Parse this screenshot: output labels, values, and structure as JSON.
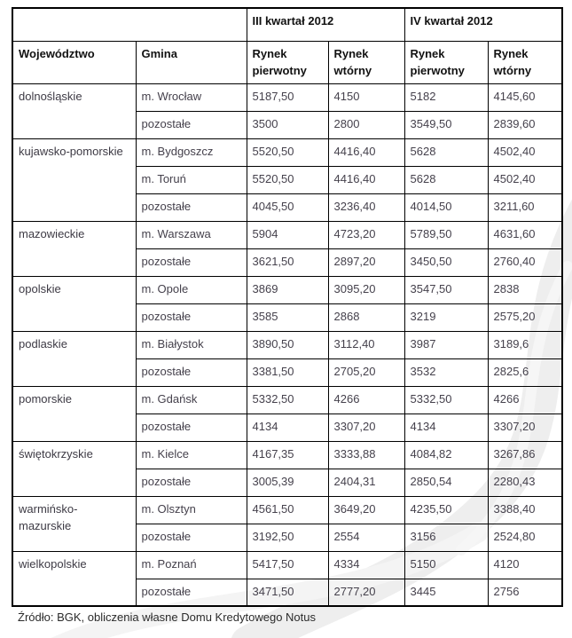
{
  "colors": {
    "border": "#000000",
    "header_text": "#121212",
    "data_text": "#45414c",
    "background": "#ffffff",
    "watermark": "#ededed"
  },
  "table": {
    "quarter_headers": [
      "III kwartał 2012",
      "IV kwartał 2012"
    ],
    "column_headers": [
      "Województwo",
      "Gmina",
      "Rynek pierwotny",
      "Rynek wtórny",
      "Rynek pierwotny",
      "Rynek wtórny"
    ],
    "groups": [
      {
        "wojewodztwo": "dolnośląskie",
        "rows": [
          {
            "gmina": "m. Wrocław",
            "values": [
              "5187,50",
              "4150",
              "5182",
              "4145,60"
            ]
          },
          {
            "gmina": "pozostałe",
            "values": [
              "3500",
              "2800",
              "3549,50",
              "2839,60"
            ]
          }
        ]
      },
      {
        "wojewodztwo": "kujawsko-pomorskie",
        "rows": [
          {
            "gmina": "m. Bydgoszcz",
            "values": [
              "5520,50",
              "4416,40",
              "5628",
              "4502,40"
            ]
          },
          {
            "gmina": "m. Toruń",
            "values": [
              "5520,50",
              "4416,40",
              "5628",
              "4502,40"
            ]
          },
          {
            "gmina": "pozostałe",
            "values": [
              "4045,50",
              "3236,40",
              "4014,50",
              "3211,60"
            ]
          }
        ]
      },
      {
        "wojewodztwo": "mazowieckie",
        "rows": [
          {
            "gmina": "m. Warszawa",
            "values": [
              "5904",
              "4723,20",
              "5789,50",
              "4631,60"
            ]
          },
          {
            "gmina": "pozostałe",
            "values": [
              "3621,50",
              "2897,20",
              "3450,50",
              "2760,40"
            ]
          }
        ]
      },
      {
        "wojewodztwo": "opolskie",
        "rows": [
          {
            "gmina": "m. Opole",
            "values": [
              "3869",
              "3095,20",
              "3547,50",
              "2838"
            ]
          },
          {
            "gmina": "pozostałe",
            "values": [
              "3585",
              "2868",
              "3219",
              "2575,20"
            ]
          }
        ]
      },
      {
        "wojewodztwo": "podlaskie",
        "rows": [
          {
            "gmina": "m. Białystok",
            "values": [
              "3890,50",
              "3112,40",
              "3987",
              "3189,6"
            ]
          },
          {
            "gmina": "pozostałe",
            "values": [
              "3381,50",
              "2705,20",
              "3532",
              "2825,6"
            ]
          }
        ]
      },
      {
        "wojewodztwo": "pomorskie",
        "rows": [
          {
            "gmina": "m. Gdańsk",
            "values": [
              "5332,50",
              "4266",
              "5332,50",
              "4266"
            ]
          },
          {
            "gmina": "pozostałe",
            "values": [
              "4134",
              "3307,20",
              "4134",
              "3307,20"
            ]
          }
        ]
      },
      {
        "wojewodztwo": "świętokrzyskie",
        "rows": [
          {
            "gmina": "m. Kielce",
            "values": [
              "4167,35",
              "3333,88",
              "4084,82",
              "3267,86"
            ]
          },
          {
            "gmina": "pozostałe",
            "values": [
              "3005,39",
              "2404,31",
              "2850,54",
              "2280,43"
            ]
          }
        ]
      },
      {
        "wojewodztwo": "warmińsko-\nmazurskie",
        "rows": [
          {
            "gmina": "m. Olsztyn",
            "values": [
              "4561,50",
              "3649,20",
              "4235,50",
              "3388,40"
            ]
          },
          {
            "gmina": "pozostałe",
            "values": [
              "3192,50",
              "2554",
              "3156",
              "2524,80"
            ]
          }
        ]
      },
      {
        "wojewodztwo": "wielkopolskie",
        "rows": [
          {
            "gmina": "m. Poznań",
            "values": [
              "5417,50",
              "4334",
              "5150",
              "4120"
            ]
          },
          {
            "gmina": "pozostałe",
            "values": [
              "3471,50",
              "2777,20",
              "3445",
              "2756"
            ]
          }
        ]
      }
    ]
  },
  "footer": {
    "source": "Źródło: BGK, obliczenia własne Domu Kredytowego Notus"
  }
}
